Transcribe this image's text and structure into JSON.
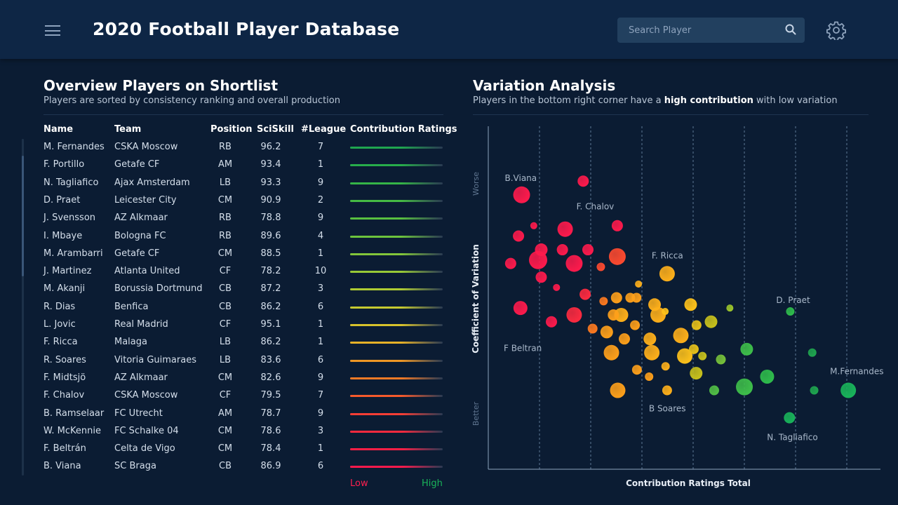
{
  "header": {
    "title": "2020 Football Player Database",
    "search_placeholder": "Search Player"
  },
  "overview": {
    "title": "Overview Players on Shortlist",
    "subtitle": "Players are sorted by consistency ranking and overall production",
    "columns": [
      "Name",
      "Team",
      "Position",
      "SciSkill",
      "#League",
      "Contribution Ratings"
    ],
    "rows": [
      {
        "name": "M. Fernandes",
        "team": "CSKA Moscow",
        "position": "RB",
        "sciskill": "96.2",
        "league": "7",
        "color": "#1fa64f"
      },
      {
        "name": "F. Portillo",
        "team": "Getafe CF",
        "position": "AM",
        "sciskill": "93.4",
        "league": "1",
        "color": "#27ad4b"
      },
      {
        "name": "N. Tagliafico",
        "team": "Ajax Amsterdam",
        "position": "LB",
        "sciskill": "93.3",
        "league": "9",
        "color": "#35b447"
      },
      {
        "name": "D. Praet",
        "team": "Leicester City",
        "position": "CM",
        "sciskill": "90.9",
        "league": "2",
        "color": "#45ba44"
      },
      {
        "name": "J. Svensson",
        "team": "AZ Alkmaar",
        "position": "RB",
        "sciskill": "78.8",
        "league": "9",
        "color": "#58bf40"
      },
      {
        "name": "I. Mbaye",
        "team": "Bologna FC",
        "position": "RB",
        "sciskill": "89.6",
        "league": "4",
        "color": "#6cc33d"
      },
      {
        "name": "M. Arambarri",
        "team": "Getafe CF",
        "position": "CM",
        "sciskill": "88.5",
        "league": "1",
        "color": "#82c63a"
      },
      {
        "name": "J. Martinez",
        "team": "Atlanta United",
        "position": "CF",
        "sciskill": "78.2",
        "league": "10",
        "color": "#98c937"
      },
      {
        "name": "M. Akanji",
        "team": "Borussia Dortmund",
        "position": "CB",
        "sciskill": "87.2",
        "league": "3",
        "color": "#afcb33"
      },
      {
        "name": "R. Dias",
        "team": "Benfica",
        "position": "CB",
        "sciskill": "86.2",
        "league": "6",
        "color": "#c5c930"
      },
      {
        "name": "L. Jovic",
        "team": "Real Madrid",
        "position": "CF",
        "sciskill": "95.1",
        "league": "1",
        "color": "#d8c22c"
      },
      {
        "name": "F. Ricca",
        "team": "Malaga",
        "position": "LB",
        "sciskill": "86.2",
        "league": "1",
        "color": "#e6b128"
      },
      {
        "name": "R. Soares",
        "team": "Vitoria Guimaraes",
        "position": "LB",
        "sciskill": "83.6",
        "league": "6",
        "color": "#ee9725"
      },
      {
        "name": "F. Midtsjö",
        "team": "AZ Alkmaar",
        "position": "CM",
        "sciskill": "82.6",
        "league": "9",
        "color": "#f37a26"
      },
      {
        "name": "F. Chalov",
        "team": "CSKA Moscow",
        "position": "CF",
        "sciskill": "79.5",
        "league": "7",
        "color": "#f65a2c"
      },
      {
        "name": "B. Ramselaar",
        "team": "FC Utrecht",
        "position": "AM",
        "sciskill": "78.7",
        "league": "9",
        "color": "#f93e35"
      },
      {
        "name": "W. McKennie",
        "team": "FC Schalke 04",
        "position": "CM",
        "sciskill": "78.6",
        "league": "3",
        "color": "#fb2a3e"
      },
      {
        "name": "F. Beltrán",
        "team": "Celta de Vigo",
        "position": "CM",
        "sciskill": "78.4",
        "league": "1",
        "color": "#fd1f46"
      },
      {
        "name": "B. Viana",
        "team": "SC Braga",
        "position": "CB",
        "sciskill": "86.9",
        "league": "6",
        "color": "#ff1a4c"
      }
    ],
    "legend_low": "Low",
    "legend_high": "High"
  },
  "variation": {
    "title": "Variation Analysis",
    "subtitle_pre": "Players in the bottom right corner have a ",
    "subtitle_bold": "high contribution",
    "subtitle_post": " with low variation"
  },
  "chart_data": {
    "type": "scatter",
    "xlabel": "Contribution Ratings Total",
    "ylabel": "Coefficient of Variation",
    "y_top_label": "Worse",
    "y_bottom_label": "Better",
    "xlim": [
      0,
      100
    ],
    "ylim": [
      0,
      100
    ],
    "grid": "vertical dashed",
    "points": [
      {
        "x": 8.5,
        "y": 80,
        "r": 12,
        "c": "#ff1a4c",
        "label": "B.Viana"
      },
      {
        "x": 24.2,
        "y": 84,
        "r": 8,
        "c": "#ff1a4c"
      },
      {
        "x": 11.6,
        "y": 71,
        "r": 5,
        "c": "#ff1a4c"
      },
      {
        "x": 7.7,
        "y": 68,
        "r": 8,
        "c": "#ff1a4c"
      },
      {
        "x": 19.6,
        "y": 70,
        "r": 11,
        "c": "#ff1a4c",
        "label": "F. Chalov"
      },
      {
        "x": 32.9,
        "y": 71,
        "r": 8,
        "c": "#ff1a4c"
      },
      {
        "x": 13.5,
        "y": 64,
        "r": 9,
        "c": "#ff1a4c"
      },
      {
        "x": 18.9,
        "y": 64,
        "r": 8,
        "c": "#ff1a4c"
      },
      {
        "x": 25.4,
        "y": 64,
        "r": 8,
        "c": "#ff1a4c"
      },
      {
        "x": 5.7,
        "y": 60,
        "r": 8,
        "c": "#ff1a4c"
      },
      {
        "x": 12.7,
        "y": 61,
        "r": 13,
        "c": "#ff1a4c"
      },
      {
        "x": 21.9,
        "y": 60,
        "r": 12,
        "c": "#ff1a4c"
      },
      {
        "x": 28.7,
        "y": 59,
        "r": 6,
        "c": "#ff4a2f"
      },
      {
        "x": 32.9,
        "y": 62,
        "r": 12,
        "c": "#ff4a2f"
      },
      {
        "x": 13.5,
        "y": 56,
        "r": 8,
        "c": "#ff1a4c"
      },
      {
        "x": 17.4,
        "y": 53,
        "r": 5,
        "c": "#ff1a4c"
      },
      {
        "x": 24.7,
        "y": 51,
        "r": 8,
        "c": "#ff2a40"
      },
      {
        "x": 8.2,
        "y": 47,
        "r": 10,
        "c": "#ff1a4c"
      },
      {
        "x": 21.9,
        "y": 45,
        "r": 11,
        "c": "#ff2a40"
      },
      {
        "x": 16.1,
        "y": 43,
        "r": 8,
        "c": "#ff1a4c",
        "label": "F Beltran"
      },
      {
        "x": 29.4,
        "y": 49,
        "r": 6,
        "c": "#ff7a1f"
      },
      {
        "x": 32.7,
        "y": 50,
        "r": 8,
        "c": "#ffa01a"
      },
      {
        "x": 37.8,
        "y": 50,
        "r": 7,
        "c": "#ffa01a"
      },
      {
        "x": 38.3,
        "y": 54,
        "r": 5,
        "c": "#ffb01a"
      },
      {
        "x": 45.6,
        "y": 57,
        "r": 11,
        "c": "#ffb01a",
        "label": "F. Ricca"
      },
      {
        "x": 42.4,
        "y": 48,
        "r": 9,
        "c": "#ffb01a"
      },
      {
        "x": 33.9,
        "y": 45,
        "r": 10,
        "c": "#ffb01a"
      },
      {
        "x": 31.9,
        "y": 45,
        "r": 8,
        "c": "#ffa01a"
      },
      {
        "x": 36.2,
        "y": 50,
        "r": 7,
        "c": "#ffa01a"
      },
      {
        "x": 43.3,
        "y": 45,
        "r": 11,
        "c": "#ffb01a"
      },
      {
        "x": 45.1,
        "y": 46,
        "r": 5,
        "c": "#ffc21a"
      },
      {
        "x": 51.6,
        "y": 48,
        "r": 9,
        "c": "#ffc21a"
      },
      {
        "x": 26.6,
        "y": 41,
        "r": 7,
        "c": "#ff7a1f"
      },
      {
        "x": 30.2,
        "y": 40,
        "r": 9,
        "c": "#ffa01a"
      },
      {
        "x": 37.4,
        "y": 42,
        "r": 7,
        "c": "#ffa01a"
      },
      {
        "x": 34.7,
        "y": 38,
        "r": 8,
        "c": "#ffa01a"
      },
      {
        "x": 41.2,
        "y": 38,
        "r": 9,
        "c": "#ffb01a"
      },
      {
        "x": 49.1,
        "y": 39,
        "r": 11,
        "c": "#ffb01a"
      },
      {
        "x": 53.1,
        "y": 42,
        "r": 7,
        "c": "#e8c21a"
      },
      {
        "x": 56.8,
        "y": 43,
        "r": 9,
        "c": "#c9c21c"
      },
      {
        "x": 61.6,
        "y": 47,
        "r": 5,
        "c": "#9ec72b"
      },
      {
        "x": 31.4,
        "y": 34,
        "r": 11,
        "c": "#ffa01a"
      },
      {
        "x": 41.7,
        "y": 34,
        "r": 11,
        "c": "#ffb01a"
      },
      {
        "x": 50.1,
        "y": 33,
        "r": 11,
        "c": "#ffc21a"
      },
      {
        "x": 52.4,
        "y": 35,
        "r": 7,
        "c": "#e8c21a"
      },
      {
        "x": 54.6,
        "y": 33,
        "r": 6,
        "c": "#c9c21c"
      },
      {
        "x": 45.2,
        "y": 30,
        "r": 6,
        "c": "#ffb01a"
      },
      {
        "x": 37.9,
        "y": 29,
        "r": 7,
        "c": "#ffa01a"
      },
      {
        "x": 41.0,
        "y": 27,
        "r": 6,
        "c": "#ffa01a"
      },
      {
        "x": 53.0,
        "y": 28,
        "r": 9,
        "c": "#c9c21c"
      },
      {
        "x": 59.3,
        "y": 32,
        "r": 7,
        "c": "#77c23a"
      },
      {
        "x": 65.9,
        "y": 35,
        "r": 9,
        "c": "#3ebf4a"
      },
      {
        "x": 77.0,
        "y": 46,
        "r": 6,
        "c": "#2fbd4c",
        "label": "D. Praet"
      },
      {
        "x": 82.6,
        "y": 34,
        "r": 6,
        "c": "#1fa64f"
      },
      {
        "x": 71.1,
        "y": 27,
        "r": 10,
        "c": "#2fbd4c"
      },
      {
        "x": 65.3,
        "y": 24,
        "r": 12,
        "c": "#3ebf4a"
      },
      {
        "x": 57.6,
        "y": 23,
        "r": 7,
        "c": "#52c046"
      },
      {
        "x": 33.0,
        "y": 23,
        "r": 11,
        "c": "#ffa01a"
      },
      {
        "x": 45.6,
        "y": 23,
        "r": 7,
        "c": "#ffb01a",
        "label": "B Soares"
      },
      {
        "x": 83.1,
        "y": 23,
        "r": 6,
        "c": "#1fa64f"
      },
      {
        "x": 91.8,
        "y": 23,
        "r": 11,
        "c": "#19b45a",
        "label": "M.Fernandes"
      },
      {
        "x": 76.8,
        "y": 15,
        "r": 8,
        "c": "#19b45a",
        "label": "N. Tagliafico"
      }
    ]
  }
}
